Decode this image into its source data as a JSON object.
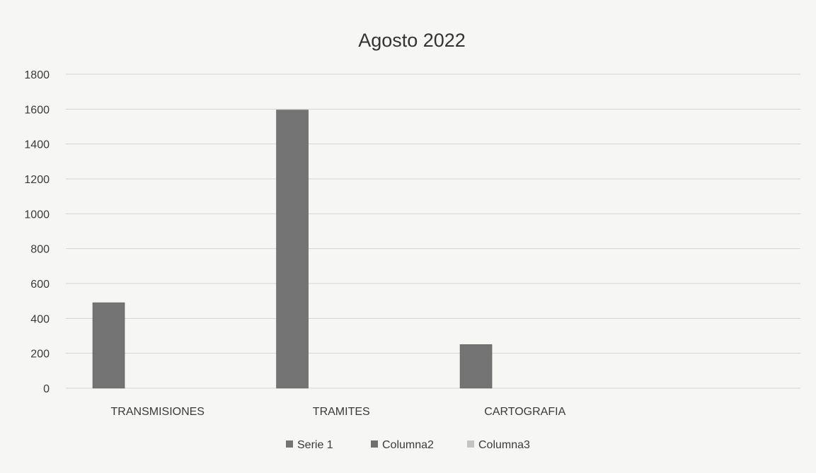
{
  "chart_data": {
    "type": "bar",
    "title": "Agosto 2022",
    "categories": [
      "TRANSMISIONES",
      "TRAMITES",
      "CARTOGRAFIA",
      ""
    ],
    "series": [
      {
        "name": "Serie 1",
        "values": [
          490,
          1595,
          250,
          null
        ]
      },
      {
        "name": "Columna2",
        "values": [
          null,
          null,
          null,
          null
        ]
      },
      {
        "name": "Columna3",
        "values": [
          null,
          null,
          null,
          null
        ]
      }
    ],
    "ylim": [
      0,
      1800
    ],
    "yticks": [
      "0",
      "200",
      "400",
      "600",
      "800",
      "1000",
      "1200",
      "1400",
      "1600",
      "1800"
    ],
    "grid": true,
    "legend": "bottom",
    "colors": {
      "Serie 1": "#747474",
      "Columna2": "#6f6f6f",
      "Columna3": "#c4c4c4",
      "grid": "#d4d4d4",
      "text": "#3a3a3a"
    }
  }
}
